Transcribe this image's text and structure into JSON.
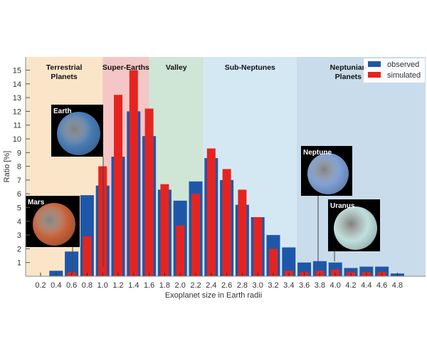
{
  "chart_data": {
    "type": "bar",
    "xlabel": "Exoplanet size in Earth radii",
    "ylabel": "Ratio [%]",
    "ylim": [
      0,
      16
    ],
    "xlim": [
      0,
      5.2
    ],
    "categories": [
      "0.2",
      "0.4",
      "0.6",
      "0.8",
      "1.0",
      "1.2",
      "1.4",
      "1.6",
      "1.8",
      "2.0",
      "2.2",
      "2.4",
      "2.6",
      "2.8",
      "3.0",
      "3.2",
      "3.4",
      "3.6",
      "3.8",
      "4.0",
      "4.2",
      "4.4",
      "4.6",
      "4.8"
    ],
    "x": [
      0.2,
      0.4,
      0.6,
      0.8,
      1.0,
      1.2,
      1.4,
      1.6,
      1.8,
      2.0,
      2.2,
      2.4,
      2.6,
      2.8,
      3.0,
      3.2,
      3.4,
      3.6,
      3.8,
      4.0,
      4.2,
      4.4,
      4.6,
      4.8
    ],
    "yticks": [
      1,
      2,
      3,
      4,
      5,
      6,
      7,
      8,
      9,
      10,
      11,
      12,
      13,
      14,
      15
    ],
    "series": [
      {
        "name": "observed",
        "color": "#1f57a8",
        "values": [
          0,
          0.4,
          1.8,
          5.9,
          6.6,
          8.7,
          12.0,
          10.2,
          6.3,
          5.5,
          6.9,
          8.6,
          7.0,
          5.2,
          4.3,
          3.0,
          2.1,
          1.0,
          1.1,
          1.0,
          0.6,
          0.7,
          0.7,
          0.2
        ]
      },
      {
        "name": "simulated",
        "color": "#e52420",
        "values": [
          0,
          0,
          0.3,
          2.9,
          8.0,
          13.2,
          15.0,
          12.2,
          6.7,
          3.7,
          6.0,
          9.3,
          7.8,
          6.3,
          4.3,
          2.0,
          0.4,
          0.3,
          0.4,
          0.5,
          0.3,
          0.3,
          0.3,
          0
        ]
      }
    ],
    "regions": [
      {
        "label": "Terrestrial",
        "label2": "Planets",
        "from": 0,
        "to": 1.0,
        "color": "#fbe5c8"
      },
      {
        "label": "Super-Earths",
        "label2": "",
        "from": 1.0,
        "to": 1.6,
        "color": "#f4c6c6"
      },
      {
        "label": "Valley",
        "label2": "",
        "from": 1.6,
        "to": 2.3,
        "color": "#cfe6d6"
      },
      {
        "label": "Sub-Neptunes",
        "label2": "",
        "from": 2.3,
        "to": 3.5,
        "color": "#d4e8f3"
      },
      {
        "label": "Neptunian",
        "label2": "Planets",
        "from": 3.5,
        "to": 5.2,
        "color": "#c9dcec"
      }
    ],
    "legend": {
      "placement": "top-right"
    },
    "annotations": [
      {
        "label": "Earth",
        "x": 1.0,
        "color": "#4a7cb5"
      },
      {
        "label": "Mars",
        "x": 0.6,
        "color": "#c8643c"
      },
      {
        "label": "Neptune",
        "x": 3.8,
        "color": "#7d9fd6"
      },
      {
        "label": "Uranus",
        "x": 4.0,
        "color": "#bfe0dc"
      }
    ]
  }
}
